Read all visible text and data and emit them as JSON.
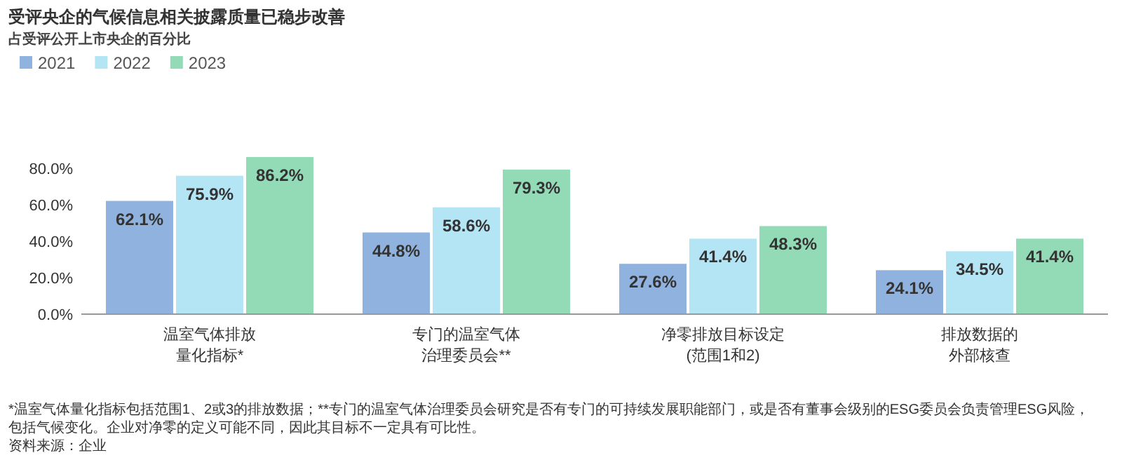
{
  "chart_data": {
    "type": "bar",
    "title": "受评央企的气候信息相关披露质量已稳步改善",
    "subtitle": "占受评公开上市央企的百分比",
    "categories": [
      "温室气体排放量化指标*",
      "专门的温室气体治理委员会**",
      "净零排放目标设定(范围1和2)",
      "排放数据的外部核查"
    ],
    "series": [
      {
        "name": "2021",
        "color": "#8fb3de",
        "values": [
          62.1,
          44.8,
          27.6,
          24.1
        ],
        "value_labels": [
          "62.1%",
          "44.8%",
          "27.6%",
          "24.1%"
        ]
      },
      {
        "name": "2022",
        "color": "#b3e5f4",
        "values": [
          75.9,
          58.6,
          41.4,
          34.5
        ],
        "value_labels": [
          "75.9%",
          "58.6%",
          "41.4%",
          "34.5%"
        ]
      },
      {
        "name": "2023",
        "color": "#93dbb7",
        "values": [
          86.2,
          79.3,
          48.3,
          41.4
        ],
        "value_labels": [
          "86.2%",
          "79.3%",
          "48.3%",
          "41.4%"
        ]
      }
    ],
    "ylim": [
      0,
      90
    ],
    "yticks": [
      {
        "value": 0,
        "label": "0.0%"
      },
      {
        "value": 20,
        "label": "20.0%"
      },
      {
        "value": 40,
        "label": "40.0%"
      },
      {
        "value": 60,
        "label": "60.0%"
      },
      {
        "value": 80,
        "label": "80.0%"
      }
    ],
    "grid": false,
    "legend": "top left",
    "annotations": [
      "*温室气体量化指标包括范围1、2或3的排放数据；**专门的温室气体治理委员会研究是否有专门的可持续发展职能部门，或是否有董事会级别的ESG委员会负责管理ESG风险，包括气候变化。企业对净零的定义可能不同，因此其目标不一定具有可比性。",
      "资料来源：企业"
    ]
  }
}
